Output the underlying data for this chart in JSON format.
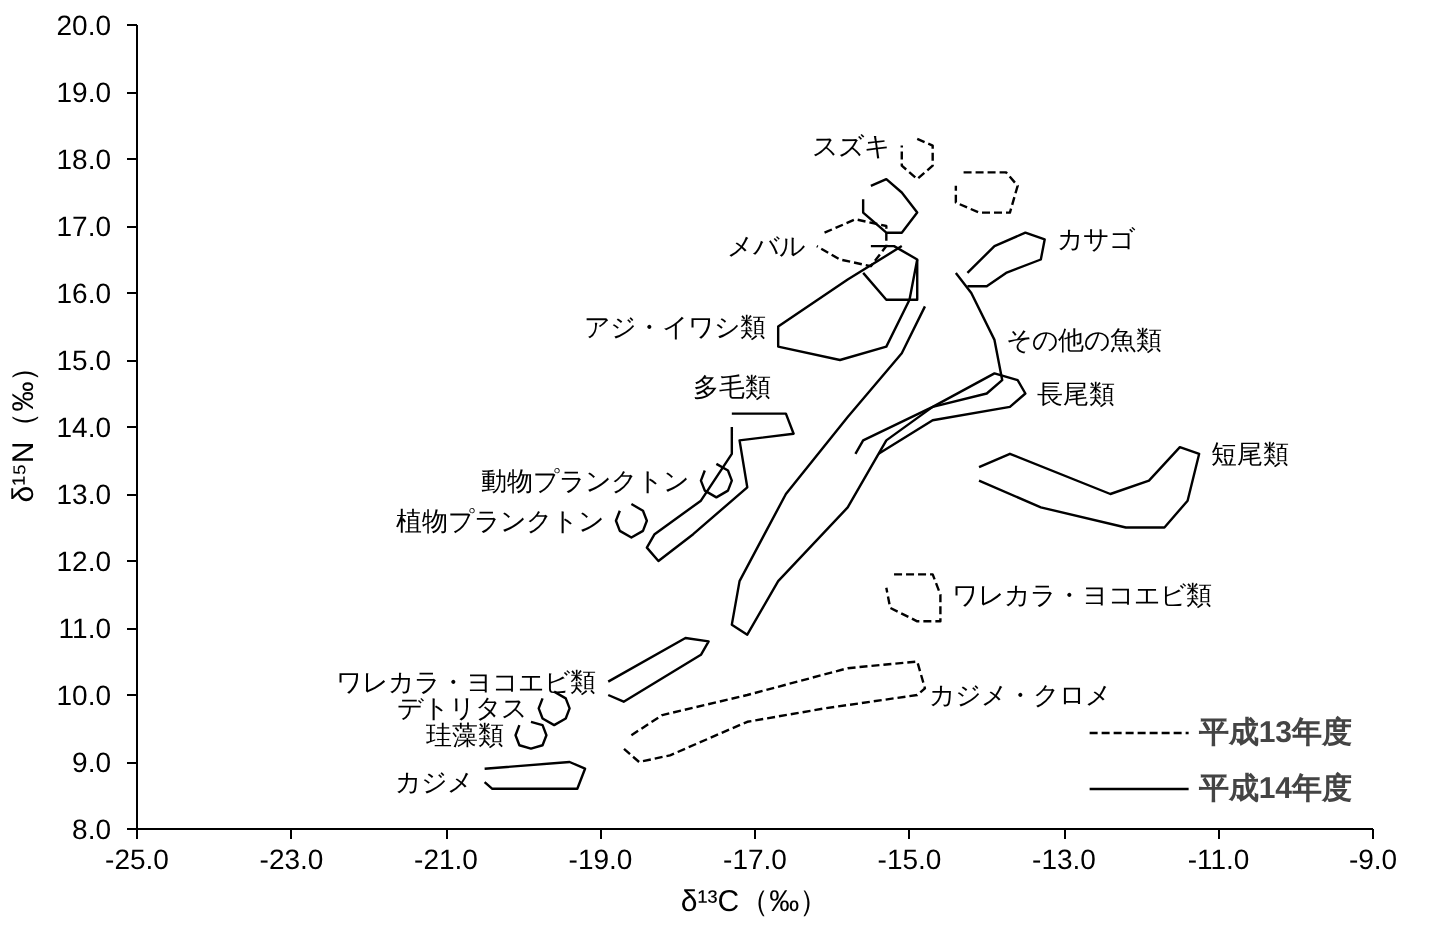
{
  "chart_data": {
    "type": "line",
    "xlabel": "δ¹³C（‰）",
    "ylabel": "δ¹⁵N（‰）",
    "xlim": [
      -25,
      -9
    ],
    "ylim": [
      8,
      20
    ],
    "xticks": [
      {
        "value": -25,
        "label": "-25.0"
      },
      {
        "value": -23,
        "label": "-23.0"
      },
      {
        "value": -21,
        "label": "-21.0"
      },
      {
        "value": -19,
        "label": "-19.0"
      },
      {
        "value": -17,
        "label": "-17.0"
      },
      {
        "value": -15,
        "label": "-15.0"
      },
      {
        "value": -13,
        "label": "-13.0"
      },
      {
        "value": -11,
        "label": "-11.0"
      },
      {
        "value": -9,
        "label": "-9.0"
      }
    ],
    "yticks": [
      {
        "value": 8,
        "label": "8.0"
      },
      {
        "value": 9,
        "label": "9.0"
      },
      {
        "value": 10,
        "label": "10.0"
      },
      {
        "value": 11,
        "label": "11.0"
      },
      {
        "value": 12,
        "label": "12.0"
      },
      {
        "value": 13,
        "label": "13.0"
      },
      {
        "value": 14,
        "label": "14.0"
      },
      {
        "value": 15,
        "label": "15.0"
      },
      {
        "value": 16,
        "label": "16.0"
      },
      {
        "value": 17,
        "label": "17.0"
      },
      {
        "value": 18,
        "label": "18.0"
      },
      {
        "value": 19,
        "label": "19.0"
      },
      {
        "value": 20,
        "label": "20.0"
      }
    ],
    "grid": false,
    "legend": "bottom right",
    "marker": "none",
    "series": [
      {
        "name": "平成13年度",
        "color": "#000000",
        "line_style": "dashed",
        "x": [
          -18.6,
          -18.2,
          -17.1,
          -15.8,
          -14.9,
          -14.8,
          -14.9,
          -16.1,
          -17.1,
          -18.1,
          -18.5,
          -18.7
        ],
        "values": [
          9.4,
          9.7,
          10.0,
          10.4,
          10.5,
          10.1,
          10.0,
          9.8,
          9.6,
          9.1,
          9.0,
          9.2
        ]
      },
      {
        "name": "平成14年度",
        "color": "#000000",
        "line_style": "solid",
        "x": [
          -14.4,
          -14.2,
          -13.9,
          -13.8,
          -14.0,
          -14.7,
          -15.3,
          -15.8,
          -16.7,
          -17.1,
          -17.3,
          -17.2,
          -16.6,
          -15.8,
          -15.1,
          -14.8
        ],
        "values": [
          16.3,
          16.0,
          15.3,
          14.7,
          14.5,
          14.3,
          13.8,
          12.8,
          11.7,
          10.9,
          11.05,
          11.7,
          13.0,
          14.15,
          15.1,
          15.8
        ]
      },
      {
        "color": "#000000",
        "line_style": "dashed",
        "x": [
          -15.2,
          -14.7,
          -14.6,
          -14.6,
          -14.9,
          -15.25,
          -15.3
        ],
        "values": [
          11.8,
          11.8,
          11.5,
          11.1,
          11.1,
          11.3,
          11.6
        ]
      },
      {
        "color": "#000000",
        "line_style": "solid",
        "x": [
          -15.7,
          -15.6,
          -14.7,
          -13.9,
          -13.6,
          -13.5,
          -13.7,
          -14.7,
          -15.4
        ],
        "values": [
          13.6,
          13.8,
          14.3,
          14.8,
          14.7,
          14.5,
          14.3,
          14.1,
          13.6
        ]
      },
      {
        "color": "#000000",
        "line_style": "solid",
        "x": [
          -14.1,
          -13.7,
          -12.4,
          -11.9,
          -11.5,
          -11.25,
          -11.4,
          -11.7,
          -12.2,
          -13.3,
          -14.1
        ],
        "values": [
          13.4,
          13.6,
          13.0,
          13.2,
          13.7,
          13.6,
          12.9,
          12.5,
          12.5,
          12.8,
          13.2
        ]
      },
      {
        "color": "#000000",
        "line_style": "solid",
        "x": [
          -17.3,
          -16.6,
          -16.5,
          -17.2,
          -17.1,
          -17.8,
          -18.25,
          -18.4,
          -18.3,
          -17.7,
          -17.3,
          -17.3
        ],
        "values": [
          14.2,
          14.2,
          13.9,
          13.8,
          13.1,
          12.4,
          12.0,
          12.2,
          12.4,
          12.9,
          13.6,
          14.0
        ]
      },
      {
        "color": "#000000",
        "line_style": "solid",
        "x": [
          -17.5,
          -17.35,
          -17.3,
          -17.35,
          -17.5,
          -17.65,
          -17.7,
          -17.65
        ],
        "values": [
          13.45,
          13.35,
          13.2,
          13.05,
          12.95,
          13.05,
          13.2,
          13.35
        ]
      },
      {
        "color": "#000000",
        "line_style": "solid",
        "x": [
          -18.6,
          -18.45,
          -18.4,
          -18.45,
          -18.6,
          -18.75,
          -18.8,
          -18.75
        ],
        "values": [
          12.85,
          12.75,
          12.6,
          12.45,
          12.35,
          12.45,
          12.6,
          12.75
        ]
      },
      {
        "color": "#000000",
        "line_style": "solid",
        "x": [
          -18.9,
          -17.9,
          -17.6,
          -17.7,
          -18.7,
          -18.9
        ],
        "values": [
          10.2,
          10.85,
          10.8,
          10.6,
          9.9,
          10.0
        ]
      },
      {
        "color": "#000000",
        "line_style": "solid",
        "x": [
          -19.6,
          -19.45,
          -19.4,
          -19.45,
          -19.6,
          -19.75,
          -19.8,
          -19.75
        ],
        "values": [
          10.05,
          9.95,
          9.8,
          9.65,
          9.55,
          9.65,
          9.8,
          9.95
        ]
      },
      {
        "color": "#000000",
        "line_style": "solid",
        "x": [
          -19.9,
          -19.75,
          -19.7,
          -19.75,
          -19.9,
          -20.05,
          -20.1,
          -20.05
        ],
        "values": [
          9.6,
          9.55,
          9.4,
          9.25,
          9.2,
          9.25,
          9.4,
          9.55
        ]
      },
      {
        "color": "#000000",
        "line_style": "solid",
        "x": [
          -20.5,
          -19.4,
          -19.2,
          -19.3,
          -20.4,
          -20.5
        ],
        "values": [
          8.9,
          9.0,
          8.9,
          8.6,
          8.6,
          8.7
        ]
      },
      {
        "color": "#000000",
        "line_style": "solid",
        "x": [
          -15.1,
          -15.8,
          -16.7,
          -16.7,
          -15.9,
          -15.3,
          -15.0,
          -14.9
        ],
        "values": [
          16.7,
          16.2,
          15.5,
          15.2,
          15.0,
          15.2,
          15.9,
          16.5
        ]
      },
      {
        "color": "#000000",
        "line_style": "solid",
        "x": [
          -15.5,
          -15.2,
          -14.9,
          -14.9,
          -15.3,
          -15.6
        ],
        "values": [
          16.7,
          16.7,
          16.5,
          15.9,
          15.9,
          16.3
        ]
      },
      {
        "color": "#000000",
        "line_style": "solid",
        "x": [
          -14.25,
          -13.9,
          -13.5,
          -13.25,
          -13.3,
          -13.75,
          -14.0,
          -14.25
        ],
        "values": [
          16.3,
          16.7,
          16.9,
          16.8,
          16.5,
          16.3,
          16.1,
          16.1
        ]
      },
      {
        "color": "#000000",
        "line_style": "solid",
        "x": [
          -15.5,
          -15.3,
          -15.1,
          -14.9,
          -15.1,
          -15.3,
          -15.6,
          -15.6
        ],
        "values": [
          17.6,
          17.7,
          17.5,
          17.2,
          16.9,
          16.9,
          17.2,
          17.4
        ]
      },
      {
        "color": "#000000",
        "line_style": "dashed",
        "x": [
          -16.1,
          -15.7,
          -15.3,
          -15.3,
          -15.5,
          -15.9,
          -16.2
        ],
        "values": [
          16.9,
          17.1,
          17.0,
          16.7,
          16.4,
          16.5,
          16.7
        ]
      },
      {
        "color": "#000000",
        "line_style": "dashed",
        "x": [
          -14.3,
          -13.75,
          -13.6,
          -13.7,
          -14.1,
          -14.4,
          -14.4
        ],
        "values": [
          17.8,
          17.8,
          17.6,
          17.2,
          17.2,
          17.35,
          17.6
        ]
      },
      {
        "color": "#000000",
        "line_style": "dashed",
        "x": [
          -14.9,
          -14.7,
          -14.7,
          -14.9,
          -15.1,
          -15.1
        ],
        "values": [
          18.3,
          18.2,
          17.9,
          17.7,
          17.9,
          18.2
        ]
      }
    ],
    "annotations": [
      {
        "text": "スズキ",
        "x": -15.1,
        "y": 18.2
      },
      {
        "text": "カサゴ",
        "x": -13.25,
        "y": 16.8
      },
      {
        "text": "メバル",
        "x": -16.2,
        "y": 16.7
      },
      {
        "text": "アジ・イワシ類",
        "x": -16.7,
        "y": 15.5
      },
      {
        "text": "その他の魚類",
        "x": -13.9,
        "y": 15.3
      },
      {
        "text": "多毛類",
        "x": -17.3,
        "y": 14.2
      },
      {
        "text": "長尾類",
        "x": -13.5,
        "y": 14.5
      },
      {
        "text": "動物プランクトン",
        "x": -17.7,
        "y": 13.2
      },
      {
        "text": "短尾類",
        "x": -11.25,
        "y": 13.6
      },
      {
        "text": "植物プランクトン",
        "x": -18.8,
        "y": 12.6
      },
      {
        "text": "ワレカラ・ヨコエビ類",
        "x": -14.6,
        "y": 11.5
      },
      {
        "text": "ワレカラ・ヨコエビ類",
        "x": -18.9,
        "y": 10.2
      },
      {
        "text": "デトリタス",
        "x": -19.8,
        "y": 9.8
      },
      {
        "text": "珪藻類",
        "x": -20.1,
        "y": 9.4
      },
      {
        "text": "カジメ",
        "x": -20.5,
        "y": 8.7
      },
      {
        "text": "カジメ・クロメ",
        "x": -14.9,
        "y": 10.0
      }
    ]
  }
}
